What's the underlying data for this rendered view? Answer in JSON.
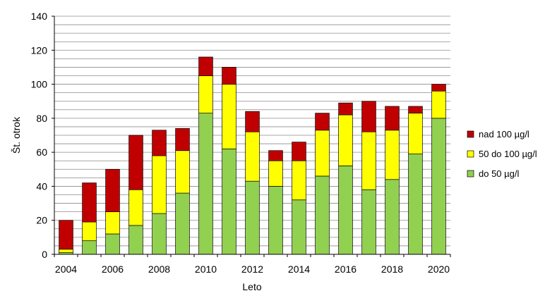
{
  "chart_data": {
    "type": "bar",
    "stacked": true,
    "title": "",
    "xlabel": "Leto",
    "ylabel": "Št. otrok",
    "ylim": [
      0,
      140
    ],
    "y_tick_step": 20,
    "grid": "horizontal minor every 5",
    "legend_position": "right",
    "categories": [
      "2004",
      "2005",
      "2006",
      "2007",
      "2008",
      "2009",
      "2010",
      "2011",
      "2012",
      "2013",
      "2014",
      "2015",
      "2016",
      "2017",
      "2018",
      "2019",
      "2020"
    ],
    "x_tick_labels": [
      "2004",
      "2006",
      "2008",
      "2010",
      "2012",
      "2014",
      "2016",
      "2018",
      "2020"
    ],
    "series": [
      {
        "name": "do 50 µg/l",
        "color": "#92D050",
        "values": [
          1,
          8,
          12,
          17,
          24,
          36,
          83,
          62,
          43,
          40,
          32,
          46,
          52,
          38,
          44,
          59,
          80
        ]
      },
      {
        "name": "50 do 100 µg/l",
        "color": "#FFFF00",
        "values": [
          2,
          11,
          13,
          21,
          34,
          25,
          22,
          38,
          29,
          15,
          23,
          27,
          30,
          34,
          29,
          24,
          16
        ]
      },
      {
        "name": "nad 100 µg/l",
        "color": "#C00000",
        "values": [
          17,
          23,
          25,
          32,
          15,
          13,
          11,
          10,
          12,
          6,
          11,
          10,
          7,
          18,
          14,
          4,
          4
        ]
      }
    ]
  }
}
